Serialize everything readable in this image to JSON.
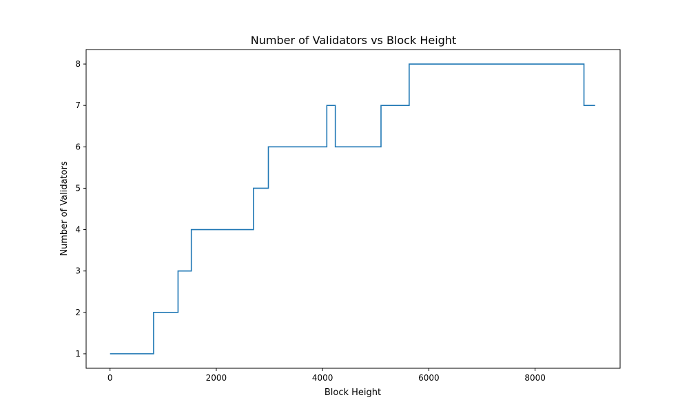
{
  "chart_data": {
    "type": "line",
    "title": "Number of Validators vs Block Height",
    "xlabel": "Block Height",
    "ylabel": "Number of Validators",
    "xlim": [
      -450,
      9600
    ],
    "ylim": [
      0.65,
      8.35
    ],
    "xticks": [
      0,
      2000,
      4000,
      6000,
      8000
    ],
    "yticks": [
      1,
      2,
      3,
      4,
      5,
      6,
      7,
      8
    ],
    "grid": false,
    "line_color": "#1f77b4",
    "series": [
      {
        "step": "post",
        "x": [
          0,
          820,
          1280,
          1530,
          2700,
          2980,
          4080,
          4240,
          5100,
          5630,
          8920,
          9130
        ],
        "values": [
          1,
          2,
          3,
          4,
          5,
          6,
          7,
          6,
          7,
          8,
          7,
          7
        ]
      }
    ]
  }
}
